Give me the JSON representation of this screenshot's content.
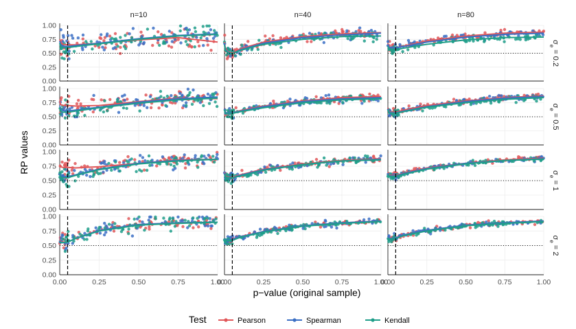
{
  "chart_data": {
    "type": "scatter",
    "layout": "facet-grid",
    "xlabel": "p−value (original sample)",
    "ylabel": "RP values",
    "xlim": [
      0,
      1
    ],
    "ylim": [
      0,
      1
    ],
    "x_ticks": [
      "0.00",
      "0.25",
      "0.50",
      "0.75",
      "1.00"
    ],
    "y_ticks": [
      "0.00",
      "0.25",
      "0.50",
      "0.75",
      "1.00"
    ],
    "col_facets": [
      "n=10",
      "n=40",
      "n=80"
    ],
    "row_facets": [
      {
        "base": "σ",
        "sub": "e",
        "value": "= 0.2"
      },
      {
        "base": "σ",
        "sub": "e",
        "value": "= 0.5"
      },
      {
        "base": "σ",
        "sub": "e",
        "value": "= 1"
      },
      {
        "base": "σ",
        "sub": "e",
        "value": "= 2"
      }
    ],
    "reference_lines": {
      "vertical_dashed_x": 0.05,
      "horizontal_dotted_y": 0.5
    },
    "legend": {
      "title": "Test",
      "position": "bottom",
      "entries": [
        {
          "name": "Pearson",
          "color": "#e15759"
        },
        {
          "name": "Spearman",
          "color": "#3b6fc4"
        },
        {
          "name": "Kendall",
          "color": "#1f9e89"
        }
      ]
    },
    "series": [
      "Pearson",
      "Spearman",
      "Kendall"
    ],
    "trend_x": [
      0.0,
      0.005,
      0.02,
      0.05,
      0.1,
      0.25,
      0.5,
      0.75,
      1.0
    ],
    "trends": [
      [
        {
          "Pearson": [
            0.75,
            0.7,
            0.66,
            0.65,
            0.65,
            0.68,
            0.74,
            0.78,
            0.7
          ],
          "Spearman": [
            0.72,
            0.66,
            0.63,
            0.62,
            0.64,
            0.68,
            0.76,
            0.82,
            0.85
          ],
          "Kendall": [
            0.68,
            0.62,
            0.6,
            0.6,
            0.62,
            0.67,
            0.75,
            0.81,
            0.84
          ]
        },
        {
          "Pearson": [
            0.7,
            0.6,
            0.53,
            0.5,
            0.58,
            0.7,
            0.8,
            0.85,
            0.87
          ],
          "Spearman": [
            0.68,
            0.57,
            0.52,
            0.49,
            0.56,
            0.68,
            0.78,
            0.83,
            0.86
          ],
          "Kendall": [
            0.65,
            0.55,
            0.51,
            0.49,
            0.55,
            0.66,
            0.75,
            0.8,
            0.81
          ]
        },
        {
          "Pearson": [
            0.68,
            0.62,
            0.6,
            0.6,
            0.63,
            0.72,
            0.81,
            0.86,
            0.88
          ],
          "Spearman": [
            0.66,
            0.61,
            0.6,
            0.6,
            0.62,
            0.7,
            0.79,
            0.84,
            0.86
          ],
          "Kendall": [
            0.63,
            0.58,
            0.56,
            0.56,
            0.59,
            0.66,
            0.74,
            0.78,
            0.79
          ]
        }
      ],
      [
        {
          "Pearson": [
            0.78,
            0.72,
            0.7,
            0.7,
            0.69,
            0.7,
            0.77,
            0.83,
            0.82
          ],
          "Spearman": [
            0.7,
            0.64,
            0.61,
            0.6,
            0.62,
            0.67,
            0.76,
            0.82,
            0.85
          ],
          "Kendall": [
            0.66,
            0.6,
            0.58,
            0.58,
            0.6,
            0.66,
            0.74,
            0.8,
            0.83
          ]
        },
        {
          "Pearson": [
            0.66,
            0.58,
            0.56,
            0.57,
            0.61,
            0.69,
            0.78,
            0.84,
            0.86
          ],
          "Spearman": [
            0.65,
            0.58,
            0.56,
            0.57,
            0.6,
            0.68,
            0.77,
            0.82,
            0.84
          ],
          "Kendall": [
            0.62,
            0.56,
            0.55,
            0.56,
            0.59,
            0.66,
            0.75,
            0.8,
            0.82
          ]
        },
        {
          "Pearson": [
            0.66,
            0.6,
            0.58,
            0.58,
            0.62,
            0.7,
            0.78,
            0.84,
            0.87
          ],
          "Spearman": [
            0.64,
            0.59,
            0.57,
            0.57,
            0.6,
            0.68,
            0.77,
            0.83,
            0.86
          ],
          "Kendall": [
            0.62,
            0.57,
            0.56,
            0.56,
            0.59,
            0.67,
            0.75,
            0.81,
            0.84
          ]
        }
      ],
      [
        {
          "Pearson": [
            0.78,
            0.74,
            0.73,
            0.73,
            0.72,
            0.74,
            0.8,
            0.86,
            0.87
          ],
          "Spearman": [
            0.62,
            0.58,
            0.57,
            0.57,
            0.6,
            0.7,
            0.8,
            0.85,
            0.87
          ],
          "Kendall": [
            0.6,
            0.56,
            0.55,
            0.55,
            0.59,
            0.69,
            0.79,
            0.84,
            0.87
          ]
        },
        {
          "Pearson": [
            0.64,
            0.58,
            0.56,
            0.56,
            0.6,
            0.7,
            0.79,
            0.85,
            0.88
          ],
          "Spearman": [
            0.63,
            0.57,
            0.55,
            0.55,
            0.59,
            0.69,
            0.78,
            0.84,
            0.87
          ],
          "Kendall": [
            0.61,
            0.56,
            0.55,
            0.55,
            0.58,
            0.68,
            0.78,
            0.84,
            0.86
          ]
        },
        {
          "Pearson": [
            0.64,
            0.6,
            0.59,
            0.59,
            0.63,
            0.72,
            0.8,
            0.86,
            0.89
          ],
          "Spearman": [
            0.63,
            0.59,
            0.58,
            0.58,
            0.62,
            0.71,
            0.8,
            0.85,
            0.88
          ],
          "Kendall": [
            0.61,
            0.58,
            0.57,
            0.57,
            0.61,
            0.7,
            0.79,
            0.85,
            0.87
          ]
        }
      ],
      [
        {
          "Pearson": [
            0.6,
            0.57,
            0.56,
            0.56,
            0.62,
            0.76,
            0.86,
            0.89,
            0.9
          ],
          "Spearman": [
            0.58,
            0.56,
            0.55,
            0.56,
            0.62,
            0.76,
            0.86,
            0.89,
            0.9
          ],
          "Kendall": [
            0.57,
            0.55,
            0.55,
            0.56,
            0.62,
            0.75,
            0.85,
            0.88,
            0.9
          ]
        },
        {
          "Pearson": [
            0.62,
            0.6,
            0.6,
            0.6,
            0.65,
            0.74,
            0.84,
            0.89,
            0.92
          ],
          "Spearman": [
            0.62,
            0.6,
            0.6,
            0.6,
            0.65,
            0.74,
            0.84,
            0.89,
            0.92
          ],
          "Kendall": [
            0.61,
            0.59,
            0.59,
            0.59,
            0.64,
            0.73,
            0.83,
            0.88,
            0.91
          ]
        },
        {
          "Pearson": [
            0.64,
            0.62,
            0.62,
            0.63,
            0.68,
            0.76,
            0.85,
            0.89,
            0.92
          ],
          "Spearman": [
            0.64,
            0.62,
            0.62,
            0.63,
            0.68,
            0.76,
            0.85,
            0.89,
            0.92
          ],
          "Kendall": [
            0.63,
            0.61,
            0.61,
            0.62,
            0.67,
            0.75,
            0.84,
            0.88,
            0.91
          ]
        }
      ]
    ],
    "scatter_noise_sd": [
      [
        0.09,
        0.04,
        0.03
      ],
      [
        0.07,
        0.035,
        0.025
      ],
      [
        0.06,
        0.03,
        0.02
      ],
      [
        0.06,
        0.025,
        0.02
      ]
    ],
    "points_per_series": 70
  }
}
